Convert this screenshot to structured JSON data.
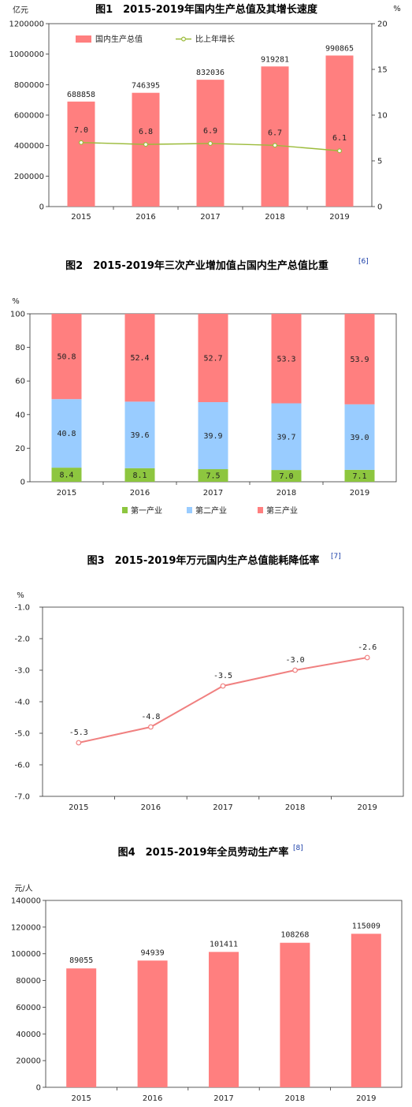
{
  "colors": {
    "gdp_bar": "#ff7f7f",
    "growth_line": "#9bbb3a",
    "primary": "#8dc63f",
    "secondary": "#99ccff",
    "tertiary": "#ff7f7f",
    "energy_line": "#f08080",
    "productivity_bar": "#ff7f7f",
    "plot_bg": "#ffffff",
    "frame": "#333333"
  },
  "chart_data": [
    {
      "id": "fig1",
      "type": "bar",
      "title": "图1　2015-2019年国内生产总值及其增长速度",
      "categories": [
        "2015",
        "2016",
        "2017",
        "2018",
        "2019"
      ],
      "ylabel": "亿元",
      "ylim": [
        0,
        1200000
      ],
      "yticks": [
        "0",
        "200000",
        "400000",
        "600000",
        "800000",
        "1000000",
        "1200000"
      ],
      "y2label": "%",
      "y2lim": [
        0,
        20
      ],
      "y2ticks": [
        "0",
        "5",
        "10",
        "15",
        "20"
      ],
      "series": [
        {
          "name": "国内生产总值",
          "kind": "bar",
          "axis": "left",
          "values": [
            688858,
            746395,
            832036,
            919281,
            990865
          ],
          "labels": [
            "688858",
            "746395",
            "832036",
            "919281",
            "990865"
          ]
        },
        {
          "name": "比上年增长",
          "kind": "line",
          "axis": "right",
          "values": [
            7.0,
            6.8,
            6.9,
            6.7,
            6.1
          ],
          "labels": [
            "7.0",
            "6.8",
            "6.9",
            "6.7",
            "6.1"
          ]
        }
      ],
      "legend": "top-left",
      "grid": false
    },
    {
      "id": "fig2",
      "type": "bar",
      "stacked": true,
      "title": "图2　2015-2019年三次产业增加值占国内生产总值比重",
      "footref": "[6]",
      "categories": [
        "2015",
        "2016",
        "2017",
        "2018",
        "2019"
      ],
      "ylabel": "%",
      "ylim": [
        0,
        100
      ],
      "yticks": [
        "0",
        "20",
        "40",
        "60",
        "80",
        "100"
      ],
      "series": [
        {
          "name": "第一产业",
          "values": [
            8.4,
            8.1,
            7.5,
            7.0,
            7.1
          ],
          "labels": [
            "8.4",
            "8.1",
            "7.5",
            "7.0",
            "7.1"
          ]
        },
        {
          "name": "第二产业",
          "values": [
            40.8,
            39.6,
            39.9,
            39.7,
            39.0
          ],
          "labels": [
            "40.8",
            "39.6",
            "39.9",
            "39.7",
            "39.0"
          ]
        },
        {
          "name": "第三产业",
          "values": [
            50.8,
            52.4,
            52.7,
            53.3,
            53.9
          ],
          "labels": [
            "50.8",
            "52.4",
            "52.7",
            "53.3",
            "53.9"
          ]
        }
      ],
      "legend": "bottom",
      "grid": false
    },
    {
      "id": "fig3",
      "type": "line",
      "title": "图3　2015-2019年万元国内生产总值能耗降低率",
      "footref": "[7]",
      "categories": [
        "2015",
        "2016",
        "2017",
        "2018",
        "2019"
      ],
      "ylabel": "%",
      "ylim": [
        -7.0,
        -1.0
      ],
      "yticks": [
        "-1.0",
        "-2.0",
        "-3.0",
        "-4.0",
        "-5.0",
        "-6.0",
        "-7.0"
      ],
      "series": [
        {
          "values": [
            -5.3,
            -4.8,
            -3.5,
            -3.0,
            -2.6
          ],
          "labels": [
            "-5.3",
            "-4.8",
            "-3.5",
            "-3.0",
            "-2.6"
          ]
        }
      ],
      "grid": false
    },
    {
      "id": "fig4",
      "type": "bar",
      "title": "图4　2015-2019年全员劳动生产率",
      "footref": "[8]",
      "categories": [
        "2015",
        "2016",
        "2017",
        "2018",
        "2019"
      ],
      "ylabel": "元/人",
      "ylim": [
        0,
        140000
      ],
      "yticks": [
        "0",
        "20000",
        "40000",
        "60000",
        "80000",
        "100000",
        "120000",
        "140000"
      ],
      "series": [
        {
          "values": [
            89055,
            94939,
            101411,
            108268,
            115009
          ],
          "labels": [
            "89055",
            "94939",
            "101411",
            "108268",
            "115009"
          ]
        }
      ],
      "grid": false
    }
  ]
}
